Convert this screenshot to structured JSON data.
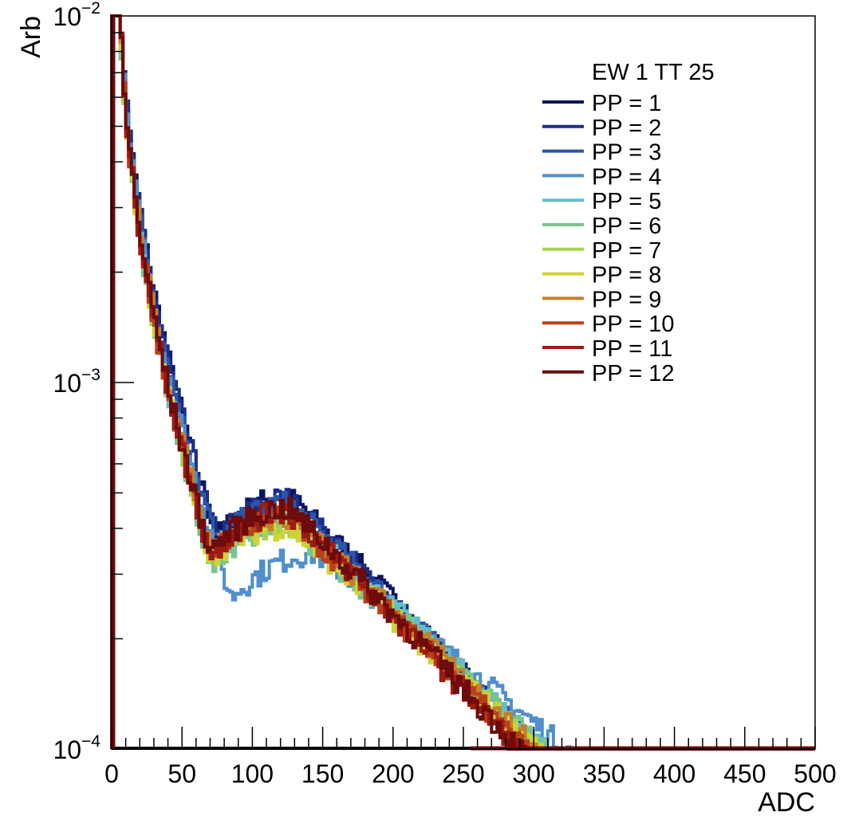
{
  "chart_data": {
    "type": "line",
    "style": "step-histogram",
    "title": "",
    "xlabel": "ADC",
    "ylabel": "Arb",
    "xlim": [
      0,
      500
    ],
    "ylim": [
      0.0001,
      0.01
    ],
    "y_scale": "log",
    "x_ticks": [
      "0",
      "50",
      "100",
      "150",
      "200",
      "250",
      "300",
      "350",
      "400",
      "450",
      "500"
    ],
    "y_ticks": [
      {
        "base": "10",
        "exp": "−4"
      },
      {
        "base": "10",
        "exp": "−3"
      },
      {
        "base": "10",
        "exp": "−2"
      }
    ],
    "grid": false,
    "legend": {
      "title": "EW 1 TT 25",
      "placement": "top-right"
    },
    "series": [
      {
        "name": "PP = 1",
        "color": "#0b1560",
        "shape": {
          "peak_x": 125,
          "peak": 0.000465,
          "valley_x": 75,
          "valley": 0.00036,
          "offset": 0.06,
          "end_x": 305
        }
      },
      {
        "name": "PP = 2",
        "color": "#1a2f8a",
        "shape": {
          "peak_x": 125,
          "peak": 0.00046,
          "valley_x": 75,
          "valley": 0.00036,
          "offset": 0.05,
          "end_x": 305
        }
      },
      {
        "name": "PP = 3",
        "color": "#2b56a8",
        "shape": {
          "peak_x": 125,
          "peak": 0.000455,
          "valley_x": 75,
          "valley": 0.000355,
          "offset": 0.03,
          "end_x": 310
        }
      },
      {
        "name": "PP = 4",
        "color": "#4f8fcb",
        "shape": {
          "peak_x": 145,
          "peak": 0.000335,
          "valley_x": 85,
          "valley": 0.000255,
          "offset": 0.02,
          "end_x": 335
        }
      },
      {
        "name": "PP = 5",
        "color": "#63bcc8",
        "shape": {
          "peak_x": 125,
          "peak": 0.00043,
          "valley_x": 70,
          "valley": 0.00034,
          "offset": 0.0,
          "end_x": 320
        }
      },
      {
        "name": "PP = 6",
        "color": "#79c58b",
        "shape": {
          "peak_x": 125,
          "peak": 0.00042,
          "valley_x": 70,
          "valley": 0.00033,
          "offset": -0.02,
          "end_x": 320
        }
      },
      {
        "name": "PP = 7",
        "color": "#a6d34f",
        "shape": {
          "peak_x": 125,
          "peak": 0.00042,
          "valley_x": 70,
          "valley": 0.00034,
          "offset": -0.01,
          "end_x": 315
        }
      },
      {
        "name": "PP = 8",
        "color": "#cfd335",
        "shape": {
          "peak_x": 125,
          "peak": 0.00041,
          "valley_x": 70,
          "valley": 0.00034,
          "offset": -0.01,
          "end_x": 315
        }
      },
      {
        "name": "PP = 9",
        "color": "#c47f2c",
        "shape": {
          "peak_x": 125,
          "peak": 0.00042,
          "valley_x": 70,
          "valley": 0.00035,
          "offset": 0.03,
          "end_x": 310
        }
      },
      {
        "name": "PP = 10",
        "color": "#b8401a",
        "shape": {
          "peak_x": 125,
          "peak": 0.00043,
          "valley_x": 70,
          "valley": 0.00034,
          "offset": 0.0,
          "end_x": 305
        }
      },
      {
        "name": "PP = 11",
        "color": "#9e1a12",
        "shape": {
          "peak_x": 125,
          "peak": 0.000445,
          "valley_x": 70,
          "valley": 0.00034,
          "offset": 0.0,
          "end_x": 300
        }
      },
      {
        "name": "PP = 12",
        "color": "#6e0b0b",
        "shape": {
          "peak_x": 125,
          "peak": 0.00045,
          "valley_x": 70,
          "valley": 0.000345,
          "offset": 0.01,
          "end_x": 300
        }
      }
    ]
  }
}
